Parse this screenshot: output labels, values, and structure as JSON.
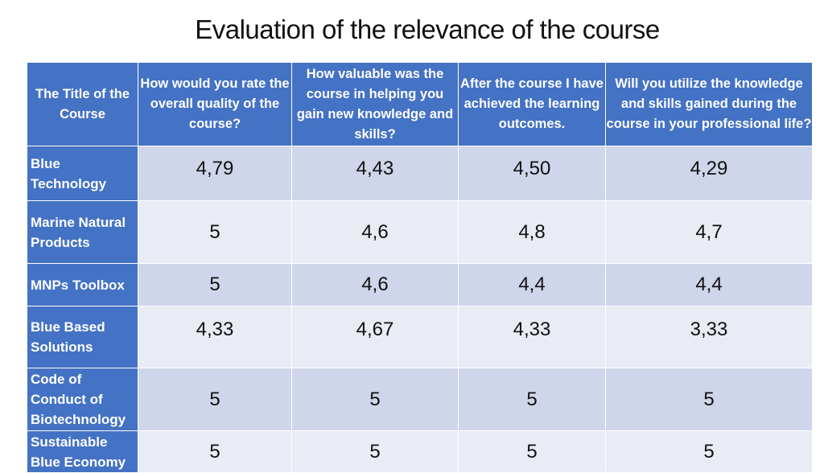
{
  "title": "Evaluation of the relevance of the course",
  "table": {
    "headers": [
      "The Title of the Course",
      "How would you rate the overall quality of the  course?",
      "How valuable was the course in helping you gain new knowledge and skills?",
      "After the course I have achieved the learning outcomes.",
      "Will you utilize the knowledge and skills gained during the course in your professional life?"
    ],
    "rows": [
      {
        "course": "Blue Technology",
        "values": [
          "4,79",
          "4,43",
          "4,50",
          "4,29"
        ]
      },
      {
        "course": "Marine Natural Products",
        "values": [
          "5",
          "4,6",
          "4,8",
          "4,7"
        ]
      },
      {
        "course": "MNPs Toolbox",
        "values": [
          "5",
          "4,6",
          "4,4",
          "4,4"
        ]
      },
      {
        "course": "Blue Based Solutions",
        "values": [
          "4,33",
          "4,67",
          "4,33",
          "3,33"
        ]
      },
      {
        "course": "Code of Conduct of Biotechnology",
        "values": [
          "5",
          "5",
          "5",
          "5"
        ]
      },
      {
        "course": "Sustainable Blue Economy",
        "values": [
          "5",
          "5",
          "5",
          "5"
        ]
      }
    ]
  },
  "colors": {
    "header_bg": "#4472c4",
    "row_odd_bg": "#cfd5ea",
    "row_even_bg": "#e9ebf5"
  }
}
